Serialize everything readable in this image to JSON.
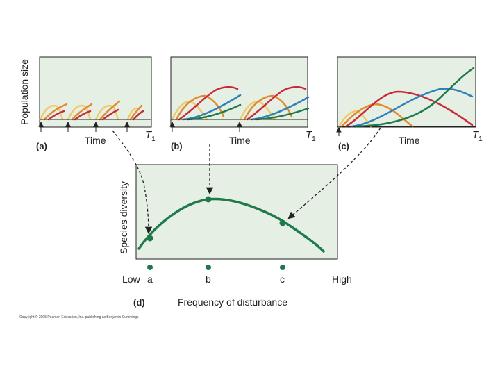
{
  "colors": {
    "panel_bg": "#e6efe4",
    "panel_stroke": "#222222",
    "pale": "#f1c96a",
    "orange": "#e08a2a",
    "red": "#c92a3a",
    "blue": "#2f7fb8",
    "green": "#1f7a4a",
    "arrow": "#222222"
  },
  "top_panels": {
    "y_label": "Population size",
    "x_label": "Time",
    "t_label": "T",
    "t_sub": "1",
    "a": {
      "letter": "(a)"
    },
    "b": {
      "letter": "(b)"
    },
    "c": {
      "letter": "(c)"
    }
  },
  "main_panel": {
    "letter": "(d)",
    "y_label": "Species diversity",
    "x_label": "Frequency of disturbance",
    "low_label": "Low",
    "high_label": "High",
    "points": [
      {
        "label": "a"
      },
      {
        "label": "b"
      },
      {
        "label": "c"
      }
    ]
  },
  "copyright": "Copyright © 2005 Pearson Education, Inc. publishing as Benjamin Cummings"
}
